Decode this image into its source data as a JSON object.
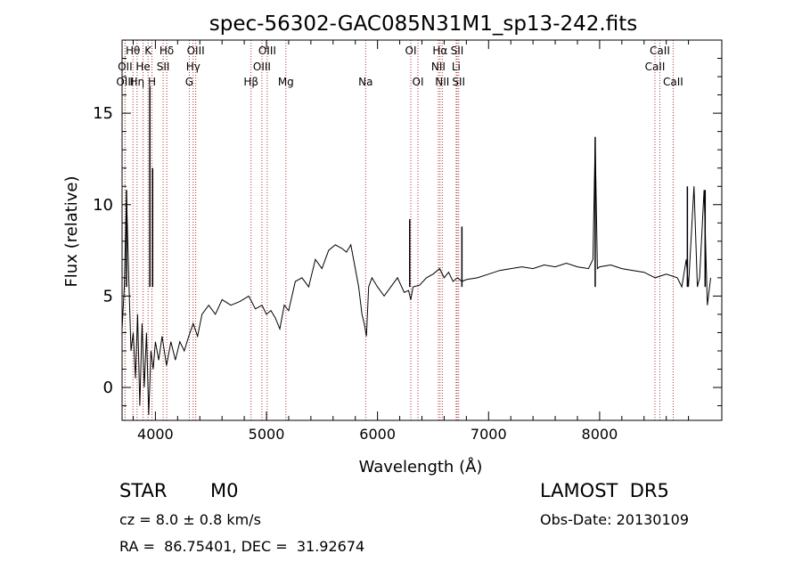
{
  "chart_data": {
    "type": "line",
    "title": "spec-56302-GAC085N31M1_sp13-242.fits",
    "xlabel": "Wavelength (Å)",
    "ylabel": "Flux (relative)",
    "xlim": [
      3700,
      9100
    ],
    "ylim": [
      -1.8,
      19
    ],
    "xticks": [
      4000,
      5000,
      6000,
      7000,
      8000
    ],
    "yticks": [
      0,
      5,
      10,
      15
    ],
    "grid": false,
    "series": [
      {
        "x": [
          3700,
          3720,
          3740,
          3760,
          3780,
          3800,
          3820,
          3840,
          3860,
          3880,
          3900,
          3920,
          3940,
          3960,
          3980,
          4000,
          4030,
          4060,
          4100,
          4140,
          4180,
          4220,
          4260,
          4300,
          4340,
          4380,
          4420,
          4480,
          4540,
          4600,
          4680,
          4760,
          4840,
          4900,
          4960,
          5000,
          5040,
          5080,
          5120,
          5160,
          5200,
          5260,
          5320,
          5380,
          5440,
          5500,
          5560,
          5620,
          5680,
          5720,
          5760,
          5800,
          5830,
          5860,
          5880,
          5900,
          5920,
          5950,
          6000,
          6060,
          6120,
          6180,
          6240,
          6280,
          6300,
          6320,
          6380,
          6440,
          6500,
          6560,
          6600,
          6640,
          6680,
          6720,
          6760,
          6800,
          6900,
          7000,
          7100,
          7200,
          7300,
          7400,
          7500,
          7600,
          7700,
          7800,
          7900,
          7940,
          7960,
          7980,
          8000,
          8100,
          8200,
          8300,
          8400,
          8500,
          8600,
          8700,
          8740,
          8780,
          8800,
          8850,
          8880,
          8900,
          8940,
          8970,
          9000
        ],
        "y": [
          3.2,
          5.5,
          10.5,
          6.0,
          2.0,
          3.0,
          0.5,
          4.0,
          -1.0,
          3.5,
          0.0,
          3.0,
          -1.5,
          2.0,
          1.0,
          2.5,
          1.5,
          2.8,
          1.2,
          2.5,
          1.5,
          2.5,
          2.0,
          2.8,
          3.5,
          2.8,
          4.0,
          4.5,
          4.0,
          4.8,
          4.5,
          4.7,
          5.0,
          4.3,
          4.5,
          4.0,
          4.2,
          3.8,
          3.2,
          4.5,
          4.2,
          5.8,
          6.0,
          5.5,
          7.0,
          6.5,
          7.5,
          7.8,
          7.6,
          7.4,
          7.8,
          6.5,
          5.5,
          4.0,
          3.5,
          2.8,
          5.5,
          6.0,
          5.5,
          5.0,
          5.5,
          6.0,
          5.2,
          5.3,
          4.8,
          5.5,
          5.6,
          6.0,
          6.2,
          6.5,
          6.0,
          6.3,
          5.8,
          6.0,
          5.8,
          5.9,
          6.0,
          6.2,
          6.4,
          6.5,
          6.6,
          6.5,
          6.7,
          6.6,
          6.8,
          6.6,
          6.5,
          7.0,
          13.5,
          6.5,
          6.6,
          6.7,
          6.5,
          6.4,
          6.3,
          6.0,
          6.2,
          6.0,
          5.5,
          7.0,
          5.5,
          11.0,
          5.5,
          6.0,
          10.8,
          4.5,
          6.0
        ]
      }
    ],
    "spikes": [
      {
        "x": 3740,
        "y": 10.8
      },
      {
        "x": 3950,
        "y": 16.5
      },
      {
        "x": 3975,
        "y": 12.0
      },
      {
        "x": 6290,
        "y": 9.2
      },
      {
        "x": 6760,
        "y": 8.8
      },
      {
        "x": 7960,
        "y": 13.7
      },
      {
        "x": 8790,
        "y": 11.0
      },
      {
        "x": 8950,
        "y": 10.8
      }
    ],
    "line_markers": [
      {
        "label": "Hθ",
        "x": 3798,
        "row": 0
      },
      {
        "label": "K",
        "x": 3934,
        "row": 0
      },
      {
        "label": "Hδ",
        "x": 4102,
        "row": 0
      },
      {
        "label": "OIII",
        "x": 4363,
        "row": 0
      },
      {
        "label": "OIII",
        "x": 5007,
        "row": 0
      },
      {
        "label": "OI",
        "x": 6300,
        "row": 0
      },
      {
        "label": "Hα",
        "x": 6563,
        "row": 0
      },
      {
        "label": "SII",
        "x": 6717,
        "row": 0
      },
      {
        "label": "CaII",
        "x": 8542,
        "row": 0
      },
      {
        "label": "OII",
        "x": 3727,
        "row": 1
      },
      {
        "label": "He",
        "x": 3889,
        "row": 1
      },
      {
        "label": "SII",
        "x": 4070,
        "row": 1
      },
      {
        "label": "Hγ",
        "x": 4340,
        "row": 1
      },
      {
        "label": "OIII",
        "x": 4959,
        "row": 1
      },
      {
        "label": "NII",
        "x": 6548,
        "row": 1
      },
      {
        "label": "Li",
        "x": 6708,
        "row": 1
      },
      {
        "label": "CaII",
        "x": 8498,
        "row": 1
      },
      {
        "label": "OIII",
        "x": 3727,
        "row": 2
      },
      {
        "label": "Hη",
        "x": 3835,
        "row": 2
      },
      {
        "label": "H",
        "x": 3969,
        "row": 2
      },
      {
        "label": "G",
        "x": 4305,
        "row": 2
      },
      {
        "label": "Hβ",
        "x": 4861,
        "row": 2
      },
      {
        "label": "Mg",
        "x": 5175,
        "row": 2
      },
      {
        "label": "Na",
        "x": 5893,
        "row": 2
      },
      {
        "label": "OI",
        "x": 6364,
        "row": 2
      },
      {
        "label": "NII",
        "x": 6583,
        "row": 2
      },
      {
        "label": "SII",
        "x": 6731,
        "row": 2
      },
      {
        "label": "CaII",
        "x": 8662,
        "row": 2
      }
    ]
  },
  "info": {
    "class_label": "STAR",
    "subclass_label": "M0",
    "survey_label": "LAMOST  DR5",
    "cz_label": "cz = 8.0 ± 0.8 km/s",
    "obs_date_label": "Obs-Date: 20130109",
    "coords_label": "RA =  86.75401, DEC =  31.92674"
  }
}
